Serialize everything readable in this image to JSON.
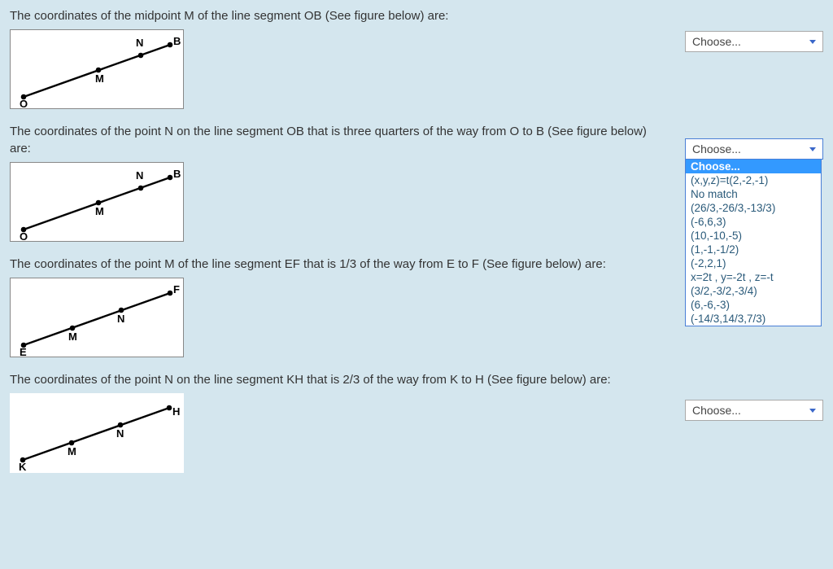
{
  "questions": [
    {
      "text": "The coordinates of the midpoint M of the line segment OB (See figure below) are:",
      "figure": "OB",
      "select_open": false,
      "select_value": "Choose..."
    },
    {
      "text": "The coordinates of the point N on the line segment OB that is three quarters of the way from O to B (See figure below) are:",
      "figure": "OB",
      "select_open": true,
      "select_value": "Choose..."
    },
    {
      "text": "The coordinates of the point M of the line segment EF that is 1/3 of the way from E to F (See figure below) are:",
      "figure": "EF",
      "select_open": false,
      "select_value": "Choose..."
    },
    {
      "text": "The coordinates of the point N on the line segment KH that is 2/3 of the way from K to H (See figure below) are:",
      "figure": "KH",
      "select_open": false,
      "select_value": "Choose..."
    }
  ],
  "dropdown_options": [
    "Choose...",
    "(x,y,z)=t(2,-2,-1)",
    "No match",
    "(26/3,-26/3,-13/3)",
    "(-6,6,3)",
    "(10,-10,-5)",
    "(1,-1,-1/2)",
    "(-2,2,1)",
    "x=2t , y=-2t , z=-t",
    "(3/2,-3/2,-3/4)",
    "(6,-6,-3)",
    "(-14/3,14/3,7/3)"
  ],
  "dropdown_selected_index": 0,
  "figures": {
    "OB": {
      "start_label": "O",
      "end_label": "B",
      "p1_label": "M",
      "p2_label": "N"
    },
    "EF": {
      "start_label": "E",
      "end_label": "F",
      "p1_label": "M",
      "p2_label": "N"
    },
    "KH": {
      "start_label": "K",
      "end_label": "H",
      "p1_label": "M",
      "p2_label": "N"
    }
  },
  "colors": {
    "page_bg": "#d4e6ee",
    "box_bg": "#ffffff",
    "box_border": "#888888",
    "line": "#000000",
    "select_border": "#a9a9a9",
    "select_focus": "#4a7fd6",
    "option_text": "#2a5a7a",
    "option_selected_bg": "#3399ff"
  }
}
